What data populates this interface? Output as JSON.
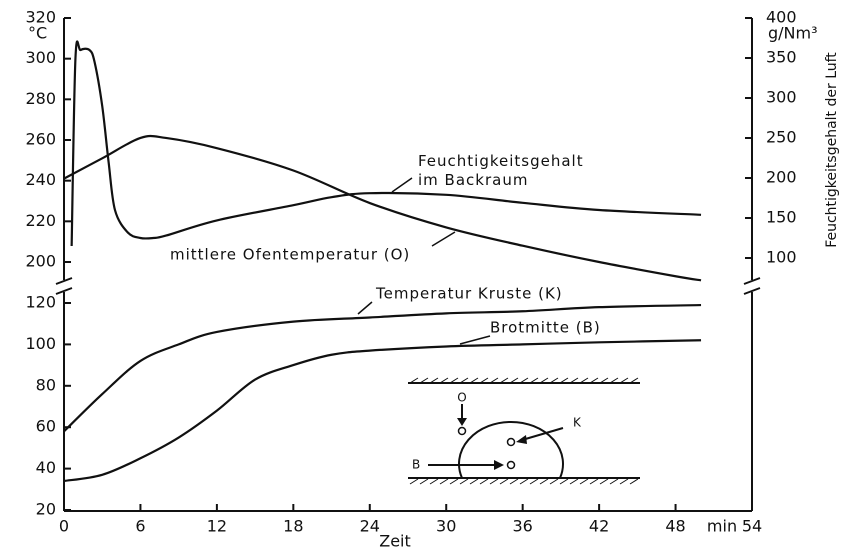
{
  "chart_data": [
    {
      "type": "line",
      "y_unit": "°C",
      "y2_unit": "g/Nm³",
      "y2label": "Feuchtigkeitsgehalt der Luft",
      "ylim": [
        200,
        320
      ],
      "yticks": [
        200,
        220,
        240,
        260,
        280,
        300,
        320
      ],
      "y2lim": [
        100,
        400
      ],
      "y2ticks": [
        100,
        150,
        200,
        250,
        300,
        350,
        400
      ],
      "series": [
        {
          "name": "mittlere Ofentemperatur (O)",
          "color": "#111111",
          "x": [
            0,
            3,
            6,
            8,
            12,
            18,
            24,
            30,
            36,
            42,
            48,
            50
          ],
          "values": [
            241,
            251,
            261,
            261,
            256,
            245,
            229,
            217,
            208,
            200,
            193,
            191
          ]
        },
        {
          "name": "Feuchtigkeitsgehalt im Backraum",
          "color": "#111111",
          "axis": "y2",
          "x": [
            0.6,
            0.9,
            1.3,
            2,
            2.4,
            3,
            3.5,
            4,
            5,
            6,
            7,
            8,
            12,
            18,
            21,
            24,
            30,
            36,
            42,
            50
          ],
          "values": [
            115,
            350,
            360,
            360,
            345,
            290,
            220,
            160,
            132,
            125,
            125,
            128,
            147,
            166,
            176,
            181,
            179,
            169,
            160,
            154
          ]
        }
      ]
    },
    {
      "type": "line",
      "xlabel": "Zeit",
      "x_unit": "min",
      "xlim": [
        0,
        54
      ],
      "xticks": [
        0,
        6,
        12,
        18,
        24,
        30,
        36,
        42,
        48,
        54
      ],
      "ylim": [
        20,
        120
      ],
      "yticks": [
        20,
        40,
        60,
        80,
        100,
        120
      ],
      "series": [
        {
          "name": "Temperatur Kruste (K)",
          "color": "#111111",
          "x": [
            0,
            3,
            6,
            9,
            12,
            18,
            24,
            30,
            36,
            42,
            50
          ],
          "values": [
            58,
            76,
            92,
            100,
            106,
            111,
            113,
            115,
            116,
            118,
            119
          ]
        },
        {
          "name": "Brotmitte (B)",
          "color": "#111111",
          "x": [
            0,
            3,
            6,
            9,
            12,
            15,
            18,
            21,
            24,
            30,
            36,
            42,
            50
          ],
          "values": [
            34,
            37,
            45,
            55,
            68,
            83,
            90,
            95,
            97,
            99,
            100,
            101,
            102
          ]
        }
      ],
      "annotations": {
        "oven": "O",
        "crust": "K",
        "center": "B"
      }
    }
  ]
}
